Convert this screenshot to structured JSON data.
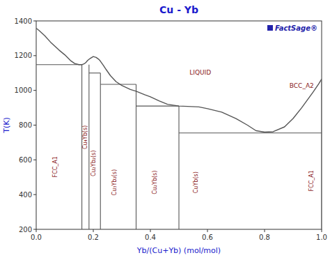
{
  "chart_data": {
    "type": "line",
    "title": "Cu - Yb",
    "xlabel": "Yb/(Cu+Yb) (mol/mol)",
    "ylabel": "T(K)",
    "xlim": [
      0,
      1
    ],
    "ylim": [
      200,
      1400
    ],
    "xticks": [
      {
        "value": 0.0,
        "label": "0.0"
      },
      0.2,
      0.4,
      0.6,
      0.8,
      {
        "value": 1.0,
        "label": "1.0"
      }
    ],
    "yticks": [
      200,
      400,
      600,
      800,
      1000,
      1200,
      1400
    ],
    "color": "#555555",
    "series": [
      {
        "x": [
          0.0,
          0.01,
          0.03,
          0.05,
          0.08,
          0.1,
          0.12,
          0.135,
          0.15,
          0.16,
          0.17,
          0.175,
          0.18,
          0.19,
          0.2,
          0.21,
          0.22,
          0.225,
          0.235,
          0.245,
          0.26,
          0.28,
          0.3,
          0.33,
          0.35,
          0.38,
          0.4,
          0.43,
          0.46,
          0.5,
          0.53,
          0.57,
          0.6,
          0.65,
          0.7,
          0.74,
          0.77,
          0.8,
          0.83,
          0.87,
          0.9,
          0.93,
          0.95,
          0.97,
          0.99,
          1.0
        ],
        "values": [
          1358,
          1345,
          1315,
          1278,
          1232,
          1205,
          1172,
          1155,
          1148,
          1148,
          1155,
          1162,
          1172,
          1185,
          1195,
          1190,
          1178,
          1168,
          1145,
          1120,
          1085,
          1050,
          1028,
          1005,
          995,
          975,
          963,
          940,
          920,
          910,
          908,
          905,
          895,
          875,
          838,
          800,
          768,
          760,
          762,
          790,
          838,
          900,
          945,
          990,
          1038,
          1065
        ]
      },
      {
        "x": [
          0.0,
          0.16
        ],
        "values": [
          1148,
          1148
        ]
      },
      {
        "x": [
          0.185,
          0.225
        ],
        "values": [
          1100,
          1100
        ]
      },
      {
        "x": [
          0.225,
          0.35
        ],
        "values": [
          1035,
          1035
        ]
      },
      {
        "x": [
          0.35,
          0.5
        ],
        "values": [
          910,
          910
        ]
      },
      {
        "x": [
          0.5,
          1.0
        ],
        "values": [
          755,
          755
        ]
      },
      {
        "x": [
          0.16,
          0.16
        ],
        "values": [
          200,
          1148
        ]
      },
      {
        "x": [
          0.185,
          0.185
        ],
        "values": [
          200,
          1148
        ]
      },
      {
        "x": [
          0.225,
          0.225
        ],
        "values": [
          200,
          1100
        ]
      },
      {
        "x": [
          0.35,
          0.35
        ],
        "values": [
          200,
          1035
        ]
      },
      {
        "x": [
          0.5,
          0.5
        ],
        "values": [
          200,
          910
        ]
      },
      {
        "x": [
          1.0,
          1.0
        ],
        "values": [
          200,
          1065
        ]
      }
    ],
    "annotations": [
      {
        "text": "FCC_A1",
        "x": 0.068,
        "y": 560
      },
      {
        "text": "Cu₄Yb(s)",
        "x": 0.172,
        "y": 730
      },
      {
        "text": "Cu₂Yb₂(s)",
        "x": 0.2,
        "y": 580
      },
      {
        "text": "Cu₃Yb₂(s)",
        "x": 0.274,
        "y": 470
      },
      {
        "text": "Cu₂Yb(s)",
        "x": 0.415,
        "y": 470
      },
      {
        "text": "CuYb(s)",
        "x": 0.56,
        "y": 470
      },
      {
        "text": "FCC_A1",
        "x": 0.965,
        "y": 480
      },
      {
        "text": "LIQUID",
        "x": 0.575,
        "y": 1105
      },
      {
        "text": "BCC_A2",
        "x": 0.93,
        "y": 1025
      },
      {
        "text": "FactSage®"
      }
    ]
  }
}
